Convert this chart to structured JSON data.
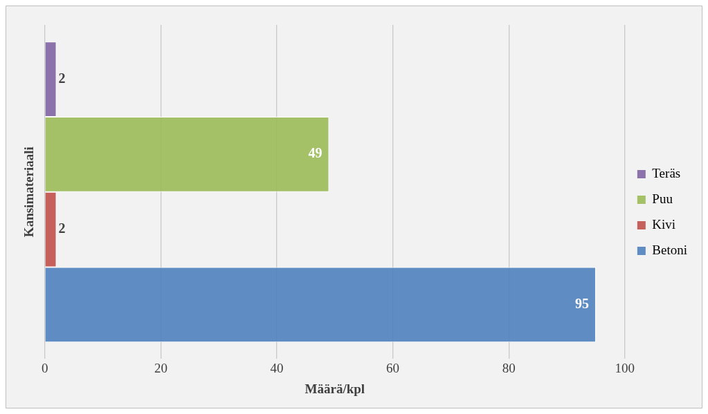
{
  "chart_data": {
    "type": "bar",
    "orientation": "horizontal",
    "xlabel": "Määrä/kpl",
    "ylabel": "Kansimateriaali",
    "categories": [
      null
    ],
    "series": [
      {
        "name": "Teräs",
        "color": "#8064a2",
        "values": [
          2
        ]
      },
      {
        "name": "Puu",
        "color": "#9bbb59",
        "values": [
          49
        ]
      },
      {
        "name": "Kivi",
        "color": "#c0504d",
        "values": [
          2
        ]
      },
      {
        "name": "Betoni",
        "color": "#4f81bd",
        "values": [
          95
        ]
      }
    ],
    "xlim": [
      0,
      100
    ],
    "xticks": [
      0,
      20,
      40,
      60,
      80,
      100
    ],
    "grid": "x",
    "legend": "right",
    "data_labels": true
  }
}
